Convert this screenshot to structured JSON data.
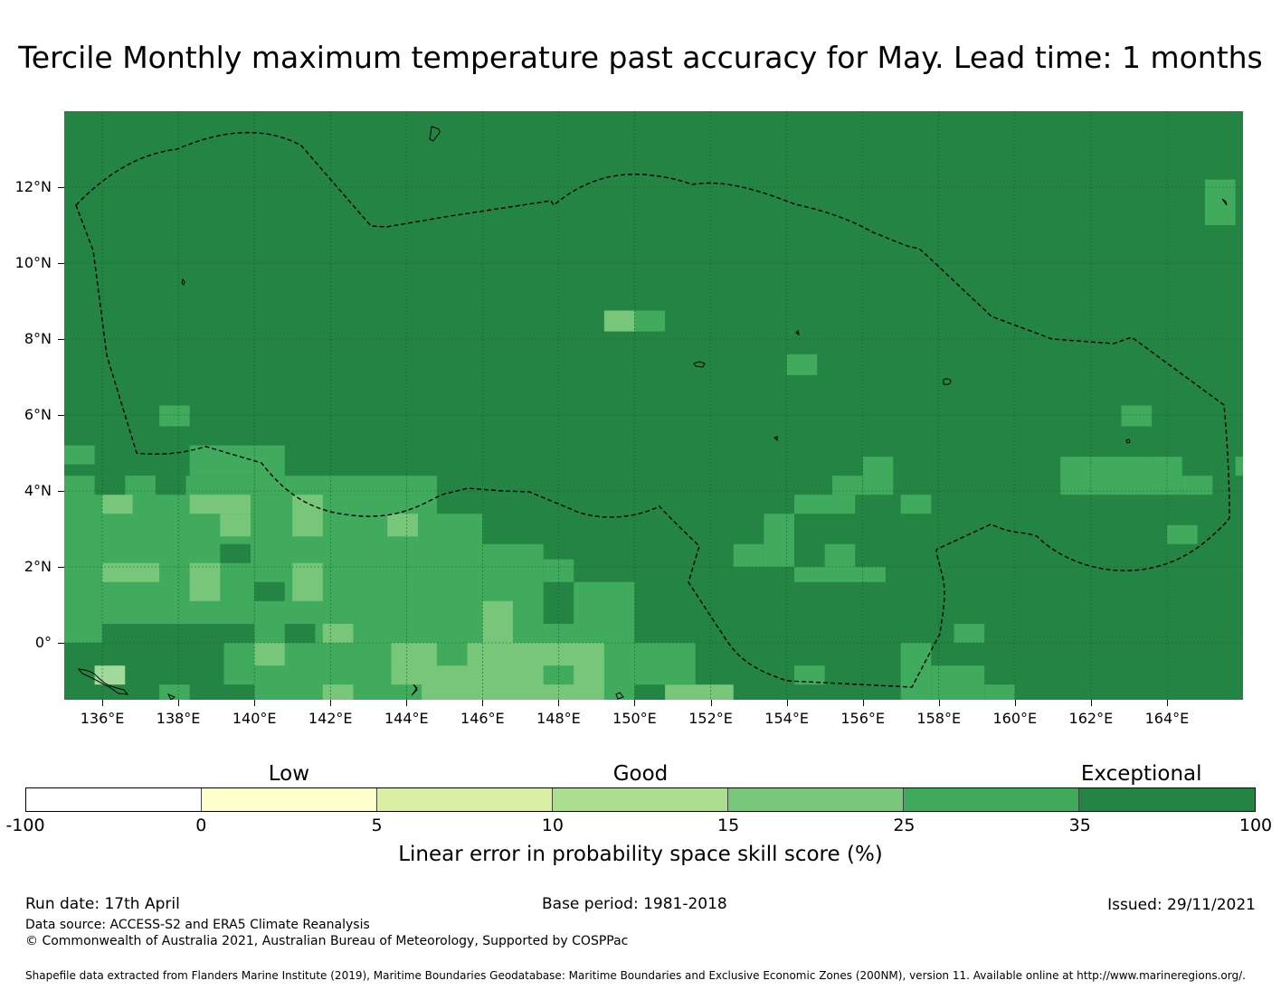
{
  "title": "Tercile Monthly maximum temperature past accuracy for May. Lead time: 1 months",
  "map": {
    "lat_labels": [
      "12°N",
      "10°N",
      "8°N",
      "6°N",
      "4°N",
      "2°N",
      "0°"
    ],
    "lat_values": [
      12,
      10,
      8,
      6,
      4,
      2,
      0
    ],
    "lon_labels": [
      "136°E",
      "138°E",
      "140°E",
      "142°E",
      "144°E",
      "146°E",
      "148°E",
      "150°E",
      "152°E",
      "154°E",
      "156°E",
      "158°E",
      "160°E",
      "162°E",
      "164°E"
    ],
    "lon_values": [
      136,
      138,
      140,
      142,
      144,
      146,
      148,
      150,
      152,
      154,
      156,
      158,
      160,
      162,
      164
    ],
    "extent": {
      "lon_min": 135,
      "lon_max": 166,
      "lat_min": -1.5,
      "lat_max": 14
    },
    "background_color": "#238443",
    "eez_boundary_style": "dashed",
    "skill_patches": [
      {
        "lon": [
          149.2,
          150.0
        ],
        "lat": [
          8.2,
          8.75
        ],
        "color": "#78c679"
      },
      {
        "lon": [
          150.0,
          150.8
        ],
        "lat": [
          8.2,
          8.75
        ],
        "color": "#41ab5d"
      },
      {
        "lon": [
          154.0,
          154.8
        ],
        "lat": [
          7.05,
          7.6
        ],
        "color": "#41ab5d"
      },
      {
        "lon": [
          165.0,
          165.8
        ],
        "lat": [
          11.0,
          12.2
        ],
        "color": "#41ab5d"
      },
      {
        "lon": [
          137.5,
          138.3
        ],
        "lat": [
          5.7,
          6.25
        ],
        "color": "#41ab5d"
      },
      {
        "lon": [
          135.0,
          135.8
        ],
        "lat": [
          4.7,
          5.2
        ],
        "color": "#41ab5d"
      },
      {
        "lon": [
          162.8,
          163.6
        ],
        "lat": [
          5.7,
          6.25
        ],
        "color": "#41ab5d"
      },
      {
        "lon": [
          161.2,
          163.6
        ],
        "lat": [
          3.9,
          4.9
        ],
        "color": "#41ab5d"
      },
      {
        "lon": [
          163.6,
          164.4
        ],
        "lat": [
          3.9,
          4.9
        ],
        "color": "#41ab5d"
      },
      {
        "lon": [
          164.4,
          165.2
        ],
        "lat": [
          3.9,
          4.4
        ],
        "color": "#41ab5d"
      },
      {
        "lon": [
          165.8,
          166.0
        ],
        "lat": [
          4.4,
          4.9
        ],
        "color": "#41ab5d"
      },
      {
        "lon": [
          164.0,
          164.8
        ],
        "lat": [
          2.6,
          3.1
        ],
        "color": "#41ab5d"
      },
      {
        "lon": [
          155.2,
          156.0
        ],
        "lat": [
          3.9,
          4.4
        ],
        "color": "#41ab5d"
      },
      {
        "lon": [
          156.0,
          156.8
        ],
        "lat": [
          3.9,
          4.9
        ],
        "color": "#41ab5d"
      },
      {
        "lon": [
          154.2,
          155.8
        ],
        "lat": [
          3.4,
          3.9
        ],
        "color": "#41ab5d"
      },
      {
        "lon": [
          157.0,
          157.8
        ],
        "lat": [
          3.4,
          3.9
        ],
        "color": "#41ab5d"
      },
      {
        "lon": [
          153.4,
          154.2
        ],
        "lat": [
          2.0,
          3.4
        ],
        "color": "#41ab5d"
      },
      {
        "lon": [
          152.6,
          153.4
        ],
        "lat": [
          2.0,
          2.6
        ],
        "color": "#41ab5d"
      },
      {
        "lon": [
          154.2,
          156.6
        ],
        "lat": [
          1.6,
          2.0
        ],
        "color": "#41ab5d"
      },
      {
        "lon": [
          155.0,
          155.8
        ],
        "lat": [
          2.0,
          2.6
        ],
        "color": "#41ab5d"
      },
      {
        "lon": [
          158.4,
          159.2
        ],
        "lat": [
          0.0,
          0.5
        ],
        "color": "#41ab5d"
      },
      {
        "lon": [
          157.0,
          157.8
        ],
        "lat": [
          -1.5,
          0.0
        ],
        "color": "#41ab5d"
      },
      {
        "lon": [
          157.8,
          159.2
        ],
        "lat": [
          -1.5,
          -0.6
        ],
        "color": "#41ab5d"
      },
      {
        "lon": [
          159.2,
          160.0
        ],
        "lat": [
          -1.5,
          -1.1
        ],
        "color": "#41ab5d"
      },
      {
        "lon": [
          154.2,
          155.0
        ],
        "lat": [
          -1.1,
          -0.6
        ],
        "color": "#41ab5d"
      },
      {
        "lon": [
          150.0,
          151.6
        ],
        "lat": [
          -1.1,
          0.0
        ],
        "color": "#41ab5d"
      },
      {
        "lon": [
          150.8,
          152.6
        ],
        "lat": [
          -1.5,
          -1.1
        ],
        "color": "#78c679"
      },
      {
        "lon": [
          135.0,
          140.0
        ],
        "lat": [
          0.0,
          4.4
        ],
        "color": "#41ab5d"
      },
      {
        "lon": [
          138.3,
          140.0
        ],
        "lat": [
          4.4,
          5.2
        ],
        "color": "#41ab5d"
      },
      {
        "lon": [
          136.6,
          137.4
        ],
        "lat": [
          3.9,
          4.4
        ],
        "color": "#41ab5d"
      },
      {
        "lon": [
          140.0,
          140.8
        ],
        "lat": [
          3.9,
          5.2
        ],
        "color": "#41ab5d"
      },
      {
        "lon": [
          140.0,
          147.6
        ],
        "lat": [
          0.0,
          3.9
        ],
        "color": "#41ab5d"
      },
      {
        "lon": [
          140.8,
          144.8
        ],
        "lat": [
          3.9,
          4.4
        ],
        "color": "#41ab5d"
      },
      {
        "lon": [
          147.6,
          148.4
        ],
        "lat": [
          1.6,
          2.2
        ],
        "color": "#41ab5d"
      },
      {
        "lon": [
          148.4,
          150.0
        ],
        "lat": [
          0.5,
          1.6
        ],
        "color": "#41ab5d"
      },
      {
        "lon": [
          147.6,
          150.0
        ],
        "lat": [
          0.0,
          0.5
        ],
        "color": "#41ab5d"
      },
      {
        "lon": [
          146.8,
          147.6
        ],
        "lat": [
          2.2,
          2.6
        ],
        "color": "#41ab5d"
      },
      {
        "lon": [
          139.2,
          143.6
        ],
        "lat": [
          -1.5,
          0.0
        ],
        "color": "#41ab5d"
      },
      {
        "lon": [
          143.6,
          150.0
        ],
        "lat": [
          -1.5,
          0.0
        ],
        "color": "#78c679"
      },
      {
        "lon": [
          144.8,
          145.6
        ],
        "lat": [
          -0.6,
          0.0
        ],
        "color": "#41ab5d"
      },
      {
        "lon": [
          147.6,
          148.4
        ],
        "lat": [
          -1.1,
          -0.6
        ],
        "color": "#41ab5d"
      },
      {
        "lon": [
          149.2,
          150.0
        ],
        "lat": [
          -1.5,
          0.0
        ],
        "color": "#41ab5d"
      },
      {
        "lon": [
          146.0,
          146.8
        ],
        "lat": [
          0.0,
          1.1
        ],
        "color": "#78c679"
      },
      {
        "lon": [
          136.0,
          136.8
        ],
        "lat": [
          3.4,
          3.9
        ],
        "color": "#78c679"
      },
      {
        "lon": [
          138.3,
          139.9
        ],
        "lat": [
          3.4,
          3.9
        ],
        "color": "#78c679"
      },
      {
        "lon": [
          139.1,
          139.9
        ],
        "lat": [
          2.8,
          3.4
        ],
        "color": "#78c679"
      },
      {
        "lon": [
          141.0,
          141.8
        ],
        "lat": [
          2.8,
          3.9
        ],
        "color": "#78c679"
      },
      {
        "lon": [
          143.5,
          144.3
        ],
        "lat": [
          2.8,
          3.4
        ],
        "color": "#78c679"
      },
      {
        "lon": [
          136.0,
          137.5
        ],
        "lat": [
          1.6,
          2.1
        ],
        "color": "#78c679"
      },
      {
        "lon": [
          138.3,
          139.1
        ],
        "lat": [
          1.1,
          2.1
        ],
        "color": "#78c679"
      },
      {
        "lon": [
          141.0,
          141.8
        ],
        "lat": [
          1.1,
          2.1
        ],
        "color": "#78c679"
      },
      {
        "lon": [
          141.8,
          142.6
        ],
        "lat": [
          0.0,
          0.5
        ],
        "color": "#78c679"
      },
      {
        "lon": [
          140.0,
          140.8
        ],
        "lat": [
          -0.6,
          0.0
        ],
        "color": "#78c679"
      },
      {
        "lon": [
          136.0,
          136.8
        ],
        "lat": [
          -1.1,
          -0.6
        ],
        "color": "#d9f0a3"
      },
      {
        "lon": [
          141.8,
          142.6
        ],
        "lat": [
          -1.5,
          -1.1
        ],
        "color": "#78c679"
      },
      {
        "lon": [
          136.0,
          140.0
        ],
        "lat": [
          0.0,
          0.5
        ],
        "color": "#238443"
      },
      {
        "lon": [
          135.0,
          139.2
        ],
        "lat": [
          -1.5,
          0.0
        ],
        "color": "#238443"
      },
      {
        "lon": [
          139.2,
          140.0
        ],
        "lat": [
          -1.5,
          -1.1
        ],
        "color": "#238443"
      },
      {
        "lon": [
          135.8,
          136.6
        ],
        "lat": [
          -1.1,
          -0.6
        ],
        "color": "#a1d99b"
      },
      {
        "lon": [
          137.5,
          138.3
        ],
        "lat": [
          -1.5,
          -1.1
        ],
        "color": "#41ab5d"
      },
      {
        "lon": [
          139.1,
          139.9
        ],
        "lat": [
          2.1,
          2.6
        ],
        "color": "#238443"
      },
      {
        "lon": [
          140.0,
          140.8
        ],
        "lat": [
          1.1,
          1.6
        ],
        "color": "#238443"
      },
      {
        "lon": [
          140.8,
          141.6
        ],
        "lat": [
          0.0,
          0.5
        ],
        "color": "#238443"
      },
      {
        "lon": [
          137.4,
          138.2
        ],
        "lat": [
          3.9,
          4.4
        ],
        "color": "#238443"
      },
      {
        "lon": [
          135.8,
          136.6
        ],
        "lat": [
          3.9,
          4.4
        ],
        "color": "#238443"
      },
      {
        "lon": [
          144.8,
          147.6
        ],
        "lat": [
          3.4,
          3.9
        ],
        "color": "#238443"
      },
      {
        "lon": [
          146.0,
          147.6
        ],
        "lat": [
          2.6,
          3.4
        ],
        "color": "#238443"
      },
      {
        "lon": [
          143.6,
          144.4
        ],
        "lat": [
          -1.5,
          -1.1
        ],
        "color": "#41ab5d"
      }
    ]
  },
  "legend": {
    "categories": [
      "Low",
      "Good",
      "Exceptional"
    ],
    "bins": [
      -100,
      0,
      5,
      10,
      15,
      25,
      35,
      100
    ],
    "bin_labels": [
      "-100",
      "0",
      "5",
      "10",
      "15",
      "25",
      "35",
      "100"
    ],
    "colors": [
      "#ffffff",
      "#ffffcc",
      "#d9f0a3",
      "#addd8e",
      "#78c679",
      "#41ab5d",
      "#238443"
    ],
    "label": "Linear error in probability space skill score (%)"
  },
  "footer": {
    "run_date": "Run date: 17th April",
    "base_period": "Base period: 1981-2018",
    "issued": "Issued: 29/11/2021",
    "data_source": "Data source: ACCESS-S2 and ERA5 Climate Reanalysis",
    "copyright": "© Commonwealth of Australia 2021, Australian Bureau of Meteorology, Supported by COSPPac",
    "shapefile": "Shapefile data extracted from Flanders Marine Institute (2019), Maritime Boundaries Geodatabase: Maritime Boundaries and Exclusive Economic Zones (200NM), version 11. Available online at http://www.marineregions.org/."
  }
}
